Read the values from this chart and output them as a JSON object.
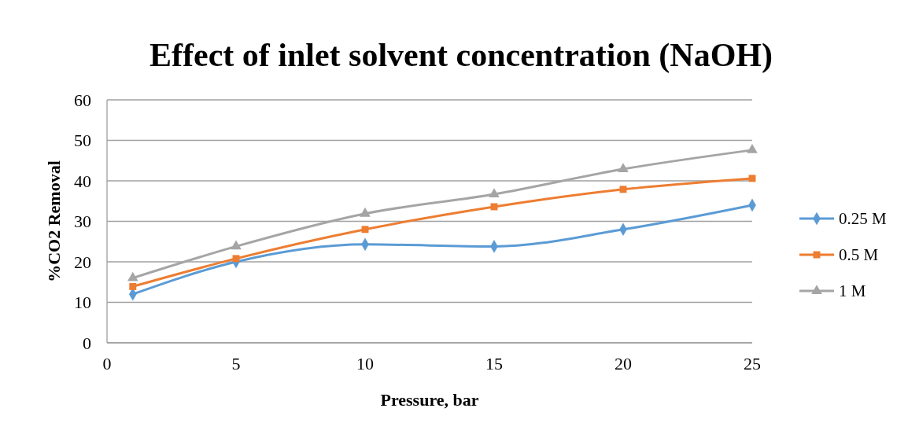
{
  "chart_data": {
    "type": "line",
    "title": "Effect of inlet solvent concentration (NaOH)",
    "xlabel": "Pressure, bar",
    "ylabel": "%CO2 Removal",
    "x": [
      1,
      5,
      10,
      15,
      20,
      25
    ],
    "series": [
      {
        "name": "0.25 M",
        "color": "#5b9bd5",
        "marker": "diamond",
        "values": [
          12,
          20,
          24.3,
          23.8,
          28,
          34
        ]
      },
      {
        "name": "0.5 M",
        "color": "#ed7d31",
        "marker": "square",
        "values": [
          13.9,
          20.8,
          28,
          33.6,
          37.9,
          40.6
        ]
      },
      {
        "name": "1 M",
        "color": "#a5a5a5",
        "marker": "triangle",
        "values": [
          16,
          23.8,
          31.9,
          36.7,
          42.9,
          47.6
        ]
      }
    ],
    "xlim": [
      0,
      25
    ],
    "xticks": [
      0,
      5,
      10,
      15,
      20,
      25
    ],
    "ylim": [
      0,
      60
    ],
    "yticks": [
      0,
      10,
      20,
      30,
      40,
      50,
      60
    ],
    "grid": "y",
    "legend": "right"
  }
}
